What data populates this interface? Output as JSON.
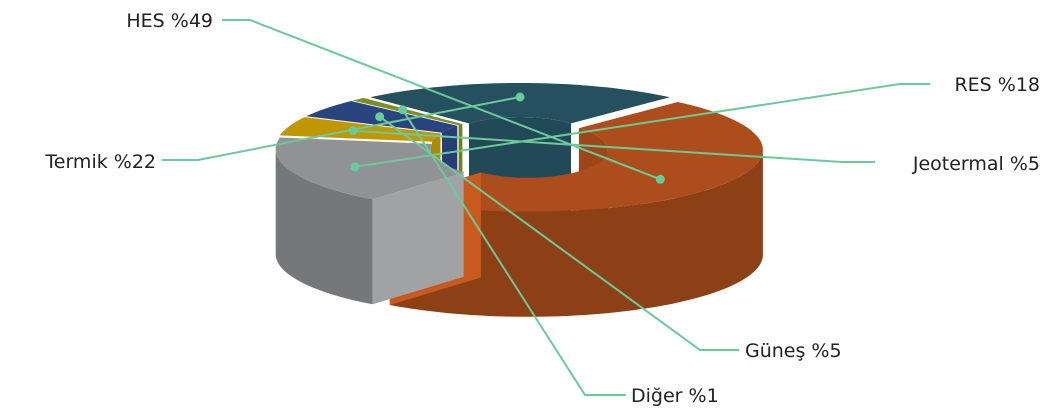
{
  "chart_data": {
    "type": "pie",
    "style": "3d-donut",
    "slices": [
      {
        "key": "hes",
        "label": "HES %49",
        "name": "HES",
        "value": 49,
        "color": "#c95a1f"
      },
      {
        "key": "res",
        "label": "RES %18",
        "name": "RES",
        "value": 18,
        "color": "#a9aaad"
      },
      {
        "key": "jeotermal",
        "label": "Jeotermal %5",
        "name": "Jeotermal",
        "value": 5,
        "color": "#e0b000"
      },
      {
        "key": "gunes",
        "label": "Güneş %5",
        "name": "Güneş",
        "value": 5,
        "color": "#314f94"
      },
      {
        "key": "diger",
        "label": "Diğer %1",
        "name": "Diğer",
        "value": 1,
        "color": "#8fa628"
      },
      {
        "key": "termik",
        "label": "Termik %22",
        "name": "Termik",
        "value": 22,
        "color": "#2b5d70"
      }
    ],
    "leader_line_color": "#6cc99a"
  }
}
